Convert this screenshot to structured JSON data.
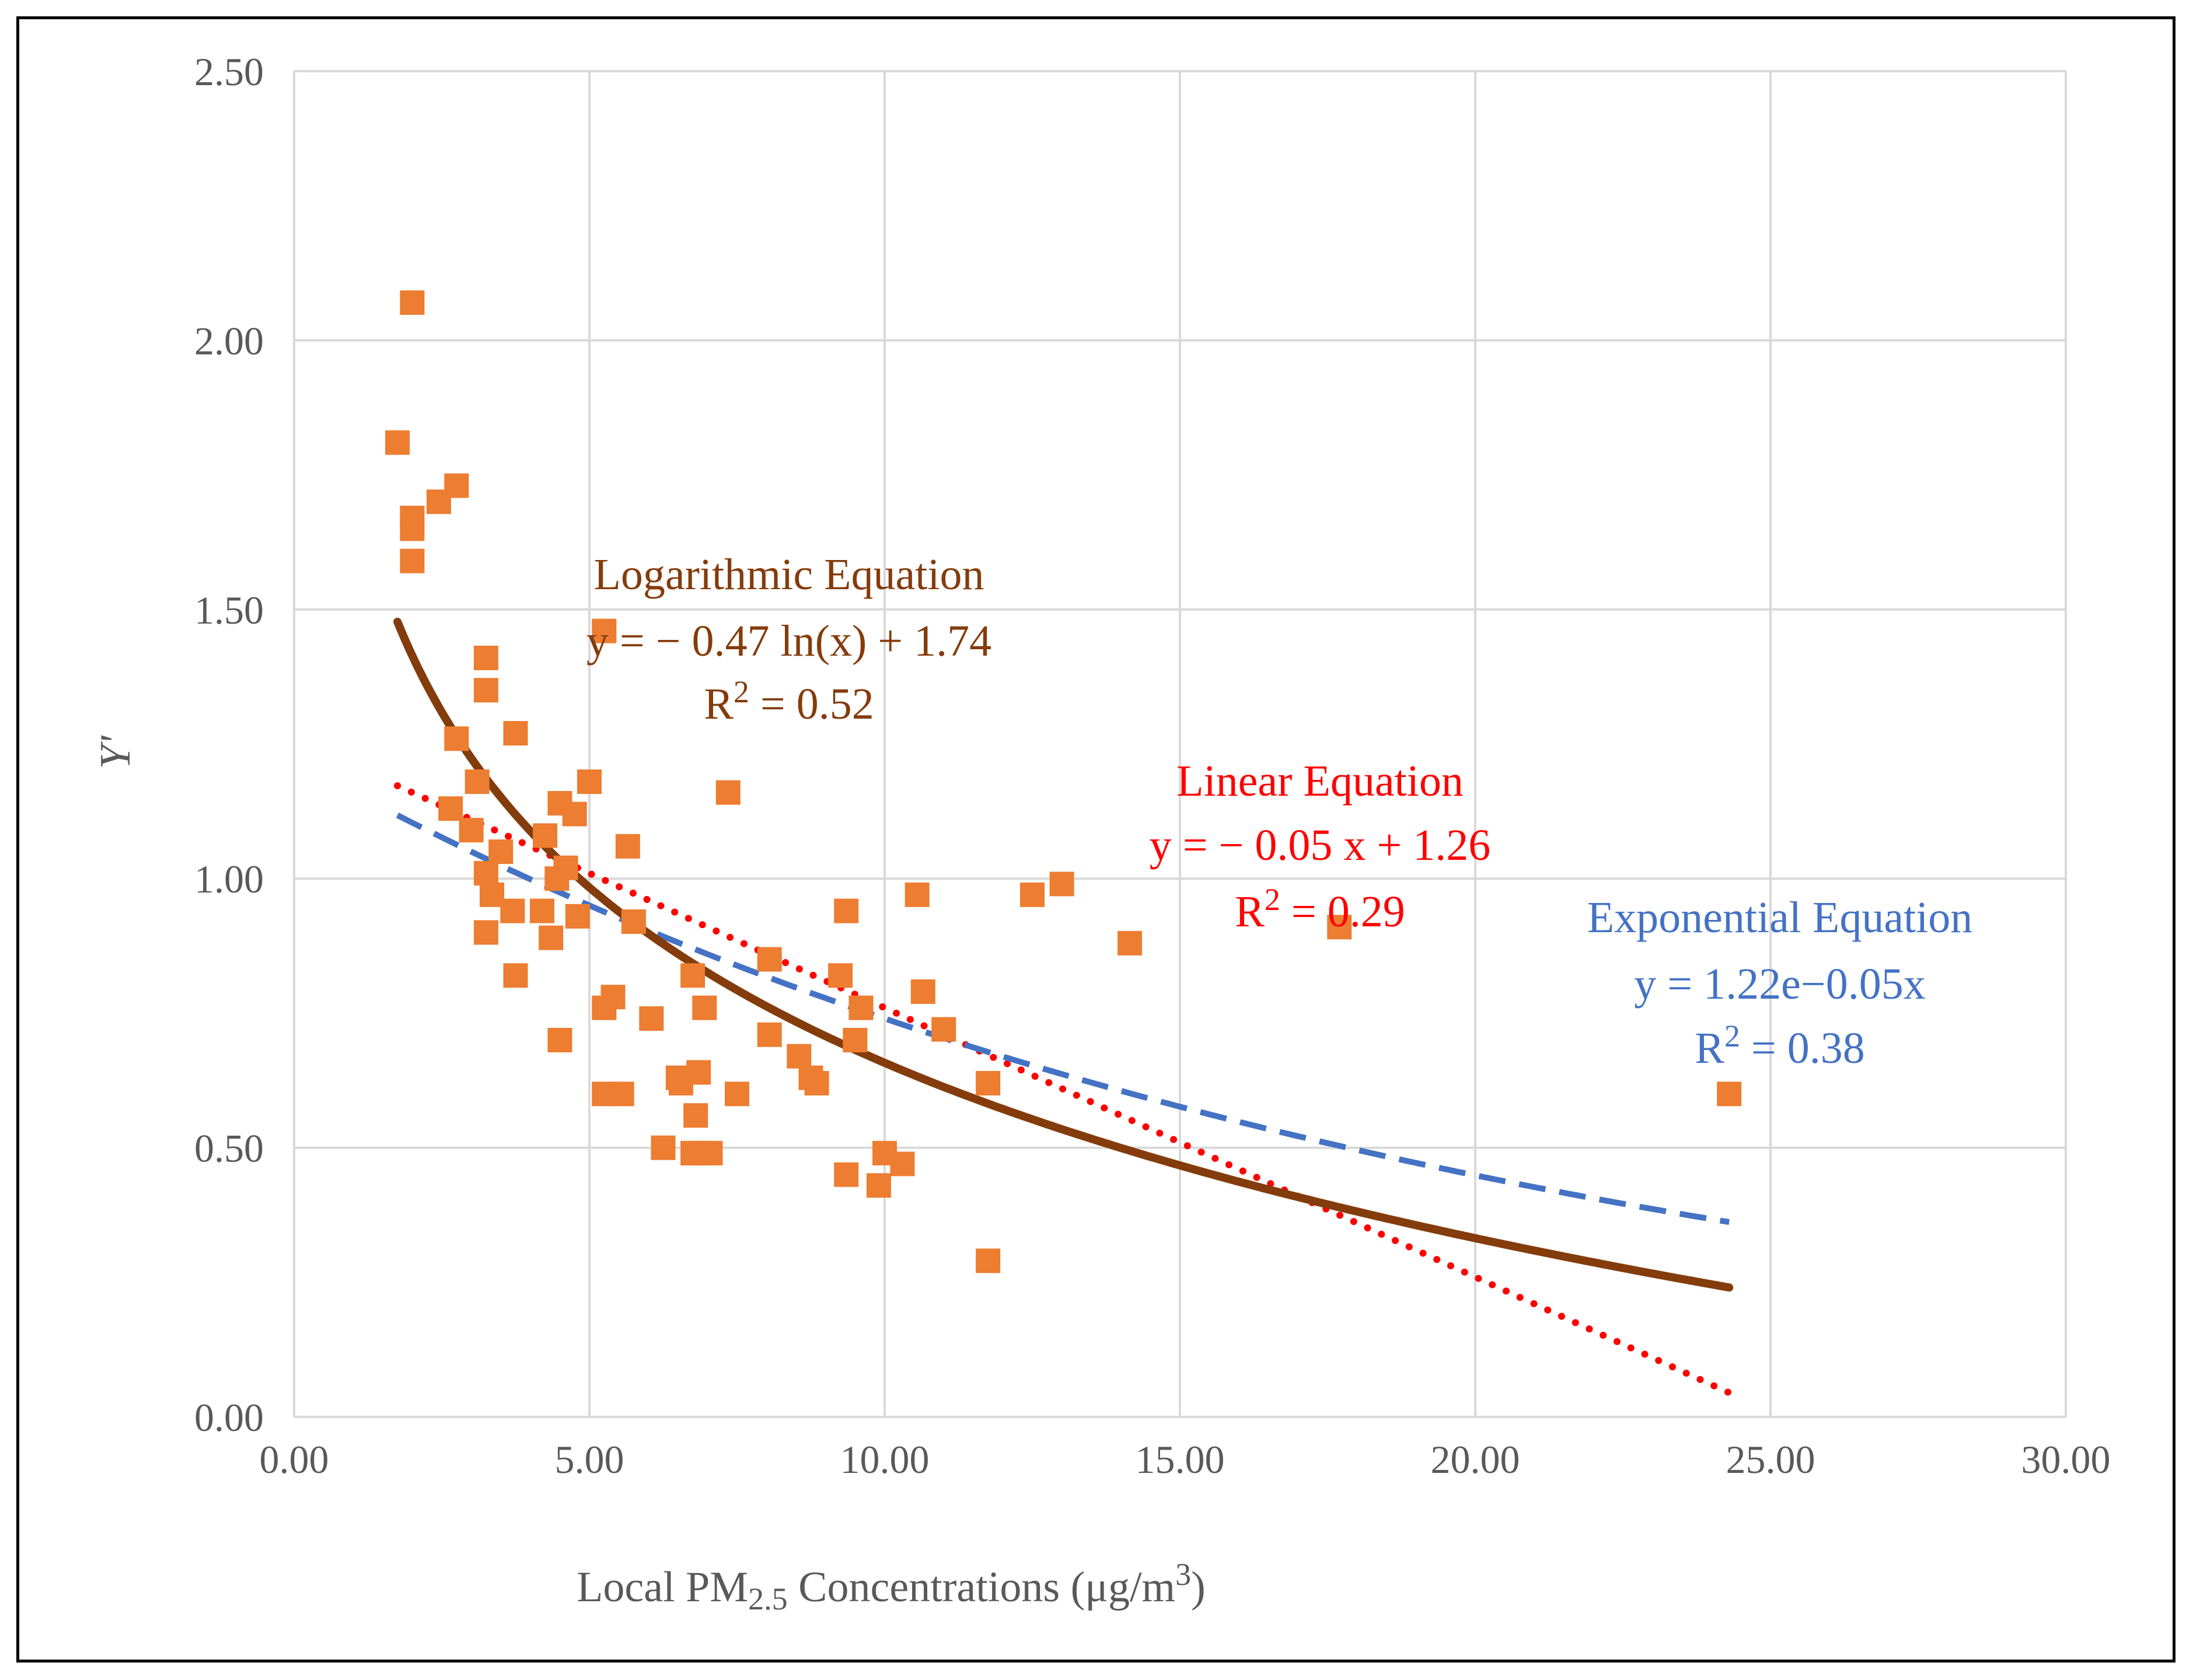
{
  "chart_data": {
    "type": "scatter",
    "title": "",
    "xlabel": {
      "prefix": "Local PM",
      "sub": "2.5",
      "middle": " Concentrations (μg/m",
      "sup": "3",
      "suffix": ")"
    },
    "ylabel": "Y'",
    "xlim": [
      0,
      30
    ],
    "ylim": [
      0,
      2.5
    ],
    "x_ticks": [
      0,
      5,
      10,
      15,
      20,
      25,
      30
    ],
    "y_ticks": [
      0,
      0.5,
      1,
      1.5,
      2,
      2.5
    ],
    "x_tick_labels": [
      "0.00",
      "5.00",
      "10.00",
      "15.00",
      "20.00",
      "25.00",
      "30.00"
    ],
    "y_tick_labels": [
      "0.00",
      "0.50",
      "1.00",
      "1.50",
      "2.00",
      "2.50"
    ],
    "grid": true,
    "legend": "none",
    "series": [
      {
        "name": "Observations",
        "marker": "square",
        "color": "#ED7D31",
        "points": [
          [
            2.0,
            2.07
          ],
          [
            1.75,
            1.81
          ],
          [
            2.75,
            1.73
          ],
          [
            2.45,
            1.7
          ],
          [
            2.0,
            1.67
          ],
          [
            2.0,
            1.65
          ],
          [
            2.0,
            1.59
          ],
          [
            5.25,
            1.46
          ],
          [
            3.25,
            1.41
          ],
          [
            3.25,
            1.35
          ],
          [
            3.75,
            1.27
          ],
          [
            2.75,
            1.26
          ],
          [
            5.0,
            1.18
          ],
          [
            3.1,
            1.18
          ],
          [
            7.35,
            1.16
          ],
          [
            4.5,
            1.14
          ],
          [
            4.75,
            1.12
          ],
          [
            2.65,
            1.13
          ],
          [
            3.0,
            1.09
          ],
          [
            4.25,
            1.08
          ],
          [
            5.65,
            1.06
          ],
          [
            3.5,
            1.05
          ],
          [
            4.6,
            1.02
          ],
          [
            3.25,
            1.01
          ],
          [
            4.45,
            1.0
          ],
          [
            3.35,
            0.97
          ],
          [
            10.55,
            0.97
          ],
          [
            12.5,
            0.97
          ],
          [
            13.0,
            0.99
          ],
          [
            3.7,
            0.94
          ],
          [
            4.2,
            0.94
          ],
          [
            4.8,
            0.93
          ],
          [
            9.35,
            0.94
          ],
          [
            5.75,
            0.92
          ],
          [
            3.25,
            0.9
          ],
          [
            4.35,
            0.89
          ],
          [
            14.15,
            0.88
          ],
          [
            17.7,
            0.91
          ],
          [
            8.05,
            0.85
          ],
          [
            6.75,
            0.82
          ],
          [
            9.25,
            0.82
          ],
          [
            3.75,
            0.82
          ],
          [
            10.65,
            0.79
          ],
          [
            5.4,
            0.78
          ],
          [
            5.25,
            0.76
          ],
          [
            6.95,
            0.76
          ],
          [
            9.6,
            0.76
          ],
          [
            6.05,
            0.74
          ],
          [
            11.0,
            0.72
          ],
          [
            8.05,
            0.71
          ],
          [
            4.5,
            0.7
          ],
          [
            9.5,
            0.7
          ],
          [
            8.55,
            0.67
          ],
          [
            6.85,
            0.64
          ],
          [
            8.75,
            0.63
          ],
          [
            6.5,
            0.63
          ],
          [
            8.85,
            0.62
          ],
          [
            6.55,
            0.62
          ],
          [
            11.75,
            0.62
          ],
          [
            24.3,
            0.6
          ],
          [
            5.25,
            0.6
          ],
          [
            5.55,
            0.6
          ],
          [
            7.5,
            0.6
          ],
          [
            6.8,
            0.56
          ],
          [
            6.25,
            0.5
          ],
          [
            6.75,
            0.49
          ],
          [
            7.05,
            0.49
          ],
          [
            6.9,
            0.49
          ],
          [
            10.0,
            0.49
          ],
          [
            10.3,
            0.47
          ],
          [
            9.35,
            0.45
          ],
          [
            9.9,
            0.43
          ],
          [
            11.75,
            0.29
          ]
        ]
      },
      {
        "name": "Logarithmic trendline",
        "color": "#843C0C",
        "style": "solid",
        "equation": {
          "a": -0.47,
          "b": 1.74,
          "form": "a*ln(x)+b"
        },
        "x_range": [
          1.75,
          24.3
        ]
      },
      {
        "name": "Linear trendline",
        "color": "#FF0000",
        "style": "dotted",
        "equation": {
          "m": -0.05,
          "b": 1.26,
          "form": "m*x+b"
        },
        "x_range": [
          1.75,
          24.3
        ]
      },
      {
        "name": "Exponential trendline",
        "color": "#4472C4",
        "style": "dashed",
        "equation": {
          "a": 1.22,
          "k": -0.05,
          "form": "a*exp(k*x)"
        },
        "x_range": [
          1.75,
          24.3
        ]
      }
    ],
    "annotations": {
      "log": {
        "color": "#843C0C",
        "title": "Logarithmic Equation",
        "equation": "y = − 0.47 ln(x) + 1.74",
        "r2_prefix": "R",
        "r2_sup": "2",
        "r2_suffix": " = 0.52"
      },
      "linear": {
        "color": "#FF0000",
        "title": "Linear Equation",
        "equation": "y = − 0.05 x + 1.26",
        "r2_prefix": "R",
        "r2_sup": "2",
        "r2_suffix": " = 0.29"
      },
      "exp": {
        "color": "#4472C4",
        "title": "Exponential Equation",
        "equation": "y = 1.22e−0.05x",
        "r2_prefix": "R",
        "r2_sup": "2",
        "r2_suffix": " = 0.38"
      }
    }
  }
}
